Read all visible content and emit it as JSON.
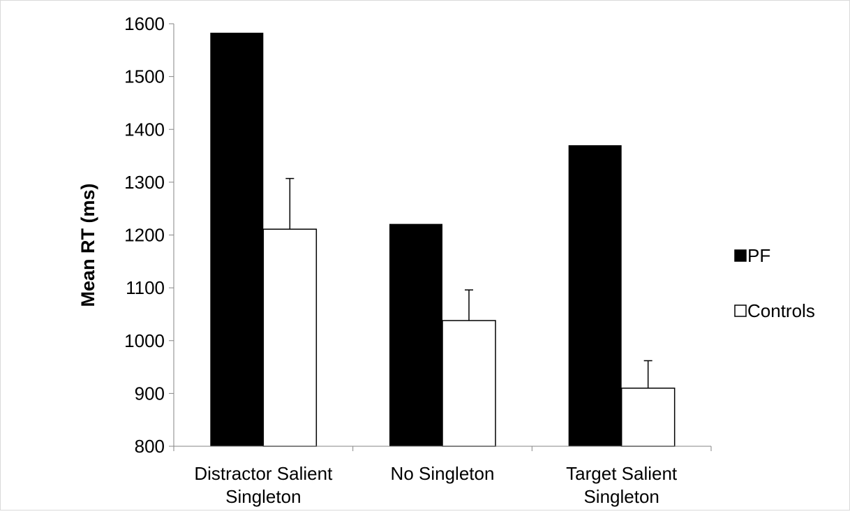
{
  "chart_data": {
    "type": "bar",
    "title": "",
    "xlabel": "",
    "ylabel": "Mean RT (ms)",
    "ylim": [
      800,
      1600
    ],
    "yticks": [
      800,
      900,
      1000,
      1100,
      1200,
      1300,
      1400,
      1500,
      1600
    ],
    "grid": false,
    "legend_position": "right",
    "categories": [
      [
        "Distractor Salient",
        "Singleton"
      ],
      [
        "No Singleton"
      ],
      [
        "Target Salient",
        "Singleton"
      ]
    ],
    "series": [
      {
        "name": "PF",
        "color": "#000000",
        "values": [
          1583,
          1221,
          1370
        ]
      },
      {
        "name": "Controls",
        "color": "#ffffff",
        "values": [
          1211,
          1038,
          910
        ],
        "error_upper": [
          96,
          58,
          52
        ]
      }
    ]
  }
}
